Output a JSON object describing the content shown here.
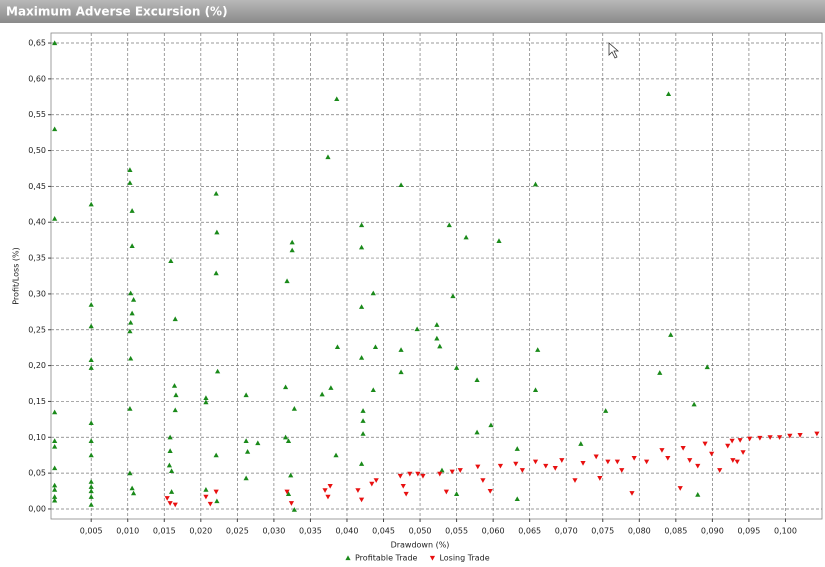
{
  "chart_data": {
    "type": "scatter",
    "title": "Maximum Adverse Excursion (%)",
    "x_label": "Drawdown (%)",
    "y_label": "Profit/Loss (%)",
    "xlim": [
      -0.0005,
      0.105
    ],
    "ylim": [
      -0.014,
      0.664
    ],
    "grid": true,
    "xticks": [
      {
        "value": 0.005,
        "label": "0,005"
      },
      {
        "value": 0.01,
        "label": "0,010"
      },
      {
        "value": 0.015,
        "label": "0,015"
      },
      {
        "value": 0.02,
        "label": "0,020"
      },
      {
        "value": 0.025,
        "label": "0,025"
      },
      {
        "value": 0.03,
        "label": "0,030"
      },
      {
        "value": 0.035,
        "label": "0,035"
      },
      {
        "value": 0.04,
        "label": "0,040"
      },
      {
        "value": 0.045,
        "label": "0,045"
      },
      {
        "value": 0.05,
        "label": "0,050"
      },
      {
        "value": 0.055,
        "label": "0,055"
      },
      {
        "value": 0.06,
        "label": "0,060"
      },
      {
        "value": 0.065,
        "label": "0,065"
      },
      {
        "value": 0.07,
        "label": "0,070"
      },
      {
        "value": 0.075,
        "label": "0,075"
      },
      {
        "value": 0.08,
        "label": "0,080"
      },
      {
        "value": 0.085,
        "label": "0,085"
      },
      {
        "value": 0.09,
        "label": "0,090"
      },
      {
        "value": 0.095,
        "label": "0,095"
      },
      {
        "value": 0.1,
        "label": "0,100"
      }
    ],
    "yticks": [
      {
        "value": 0,
        "label": "0,00"
      },
      {
        "value": 0.05,
        "label": "0,05"
      },
      {
        "value": 0.1,
        "label": "0,10"
      },
      {
        "value": 0.15,
        "label": "0,15"
      },
      {
        "value": 0.2,
        "label": "0,20"
      },
      {
        "value": 0.25,
        "label": "0,25"
      },
      {
        "value": 0.3,
        "label": "0,30"
      },
      {
        "value": 0.35,
        "label": "0,35"
      },
      {
        "value": 0.4,
        "label": "0,40"
      },
      {
        "value": 0.45,
        "label": "0,45"
      },
      {
        "value": 0.5,
        "label": "0,50"
      },
      {
        "value": 0.55,
        "label": "0,55"
      },
      {
        "value": 0.6,
        "label": "0,60"
      },
      {
        "value": 0.65,
        "label": "0,65"
      }
    ],
    "series": [
      {
        "name": "Profitable Trade",
        "color": "#1a8a1a",
        "marker": "triangle-up",
        "x": [
          0,
          0,
          0,
          0,
          0,
          0,
          0,
          0,
          0,
          0,
          0,
          0.005,
          0.005,
          0.005,
          0.005,
          0.005,
          0.005,
          0.005,
          0.005,
          0.005,
          0.005,
          0.005,
          0.005,
          0.005,
          0.0103,
          0.0103,
          0.0106,
          0.0106,
          0.0104,
          0.0108,
          0.0106,
          0.0104,
          0.0103,
          0.0104,
          0.0103,
          0.0103,
          0.0106,
          0.0108,
          0.0159,
          0.0165,
          0.0164,
          0.0166,
          0.0165,
          0.0158,
          0.0158,
          0.0157,
          0.016,
          0.016,
          0.0207,
          0.0207,
          0.0207,
          0.0221,
          0.0222,
          0.0221,
          0.0223,
          0.0221,
          0.0222,
          0.0262,
          0.0262,
          0.0264,
          0.0262,
          0.0278,
          0.0318,
          0.0316,
          0.0316,
          0.032,
          0.0323,
          0.032,
          0.0325,
          0.0325,
          0.0328,
          0.0328,
          0.0366,
          0.0374,
          0.0378,
          0.0386,
          0.0387,
          0.0385,
          0.042,
          0.042,
          0.042,
          0.042,
          0.0422,
          0.0422,
          0.0422,
          0.042,
          0.0436,
          0.0439,
          0.0436,
          0.0474,
          0.0474,
          0.0474,
          0.0496,
          0.0523,
          0.0523,
          0.0527,
          0.053,
          0.054,
          0.0545,
          0.055,
          0.055,
          0.0563,
          0.0578,
          0.0578,
          0.0597,
          0.0608,
          0.0633,
          0.0633,
          0.0658,
          0.0661,
          0.0658,
          0.072,
          0.0754,
          0.0828,
          0.084,
          0.0843,
          0.0875,
          0.088,
          0.0893
        ],
        "values": [
          0.65,
          0.53,
          0.405,
          0.135,
          0.095,
          0.087,
          0.057,
          0.033,
          0.027,
          0.017,
          0.012,
          0.425,
          0.285,
          0.255,
          0.208,
          0.197,
          0.12,
          0.095,
          0.075,
          0.038,
          0.031,
          0.025,
          0.017,
          0.006,
          0.473,
          0.455,
          0.416,
          0.367,
          0.301,
          0.292,
          0.273,
          0.26,
          0.248,
          0.21,
          0.14,
          0.05,
          0.029,
          0.022,
          0.346,
          0.265,
          0.172,
          0.159,
          0.138,
          0.1,
          0.081,
          0.061,
          0.053,
          0.024,
          0.155,
          0.149,
          0.027,
          0.44,
          0.386,
          0.329,
          0.192,
          0.075,
          0.011,
          0.159,
          0.095,
          0.08,
          0.043,
          0.092,
          0.318,
          0.17,
          0.1,
          0.095,
          0.047,
          0.021,
          0.372,
          0.361,
          0.14,
          -0.001,
          0.16,
          0.491,
          0.169,
          0.572,
          0.226,
          0.075,
          0.396,
          0.365,
          0.282,
          0.211,
          0.137,
          0.123,
          0.105,
          0.063,
          0.301,
          0.226,
          0.166,
          0.452,
          0.222,
          0.191,
          0.251,
          0.257,
          0.238,
          0.227,
          0.054,
          0.396,
          0.297,
          0.197,
          0.021,
          0.379,
          0.18,
          0.107,
          0.117,
          0.374,
          0.084,
          0.014,
          0.453,
          0.222,
          0.166,
          0.091,
          0.137,
          0.19,
          0.579,
          0.243,
          0.146,
          0.02,
          0.198
        ]
      },
      {
        "name": "Losing Trade",
        "color": "#e81010",
        "marker": "triangle-down",
        "x": [
          0.0158,
          0.0165,
          0.0154,
          0.0207,
          0.0213,
          0.0221,
          0.0318,
          0.0324,
          0.037,
          0.0374,
          0.0377,
          0.0415,
          0.042,
          0.0434,
          0.044,
          0.0473,
          0.0477,
          0.0481,
          0.0486,
          0.0497,
          0.0504,
          0.0527,
          0.0536,
          0.0544,
          0.0555,
          0.0579,
          0.0586,
          0.0596,
          0.061,
          0.0631,
          0.064,
          0.0658,
          0.0672,
          0.0685,
          0.0694,
          0.0712,
          0.0723,
          0.0741,
          0.0746,
          0.0757,
          0.077,
          0.0776,
          0.0793,
          0.079,
          0.081,
          0.0831,
          0.0839,
          0.0856,
          0.086,
          0.0869,
          0.088,
          0.089,
          0.0899,
          0.091,
          0.0921,
          0.0928,
          0.0927,
          0.0934,
          0.0938,
          0.0942,
          0.0951,
          0.0965,
          0.0979,
          0.0992,
          0.1006,
          0.102,
          0.1043
        ],
        "values": [
          0.008,
          0.006,
          0.015,
          0.017,
          0.007,
          0.024,
          0.024,
          0.008,
          0.026,
          0.017,
          0.032,
          0.026,
          0.013,
          0.035,
          0.04,
          0.046,
          0.032,
          0.021,
          0.049,
          0.049,
          0.046,
          0.049,
          0.024,
          0.052,
          0.054,
          0.059,
          0.04,
          0.025,
          0.06,
          0.063,
          0.054,
          0.066,
          0.06,
          0.057,
          0.068,
          0.04,
          0.064,
          0.073,
          0.043,
          0.066,
          0.066,
          0.054,
          0.071,
          0.022,
          0.066,
          0.082,
          0.071,
          0.029,
          0.085,
          0.068,
          0.06,
          0.091,
          0.077,
          0.054,
          0.088,
          0.068,
          0.095,
          0.066,
          0.096,
          0.079,
          0.098,
          0.099,
          0.1,
          0.1,
          0.102,
          0.103,
          0.105
        ]
      }
    ]
  }
}
